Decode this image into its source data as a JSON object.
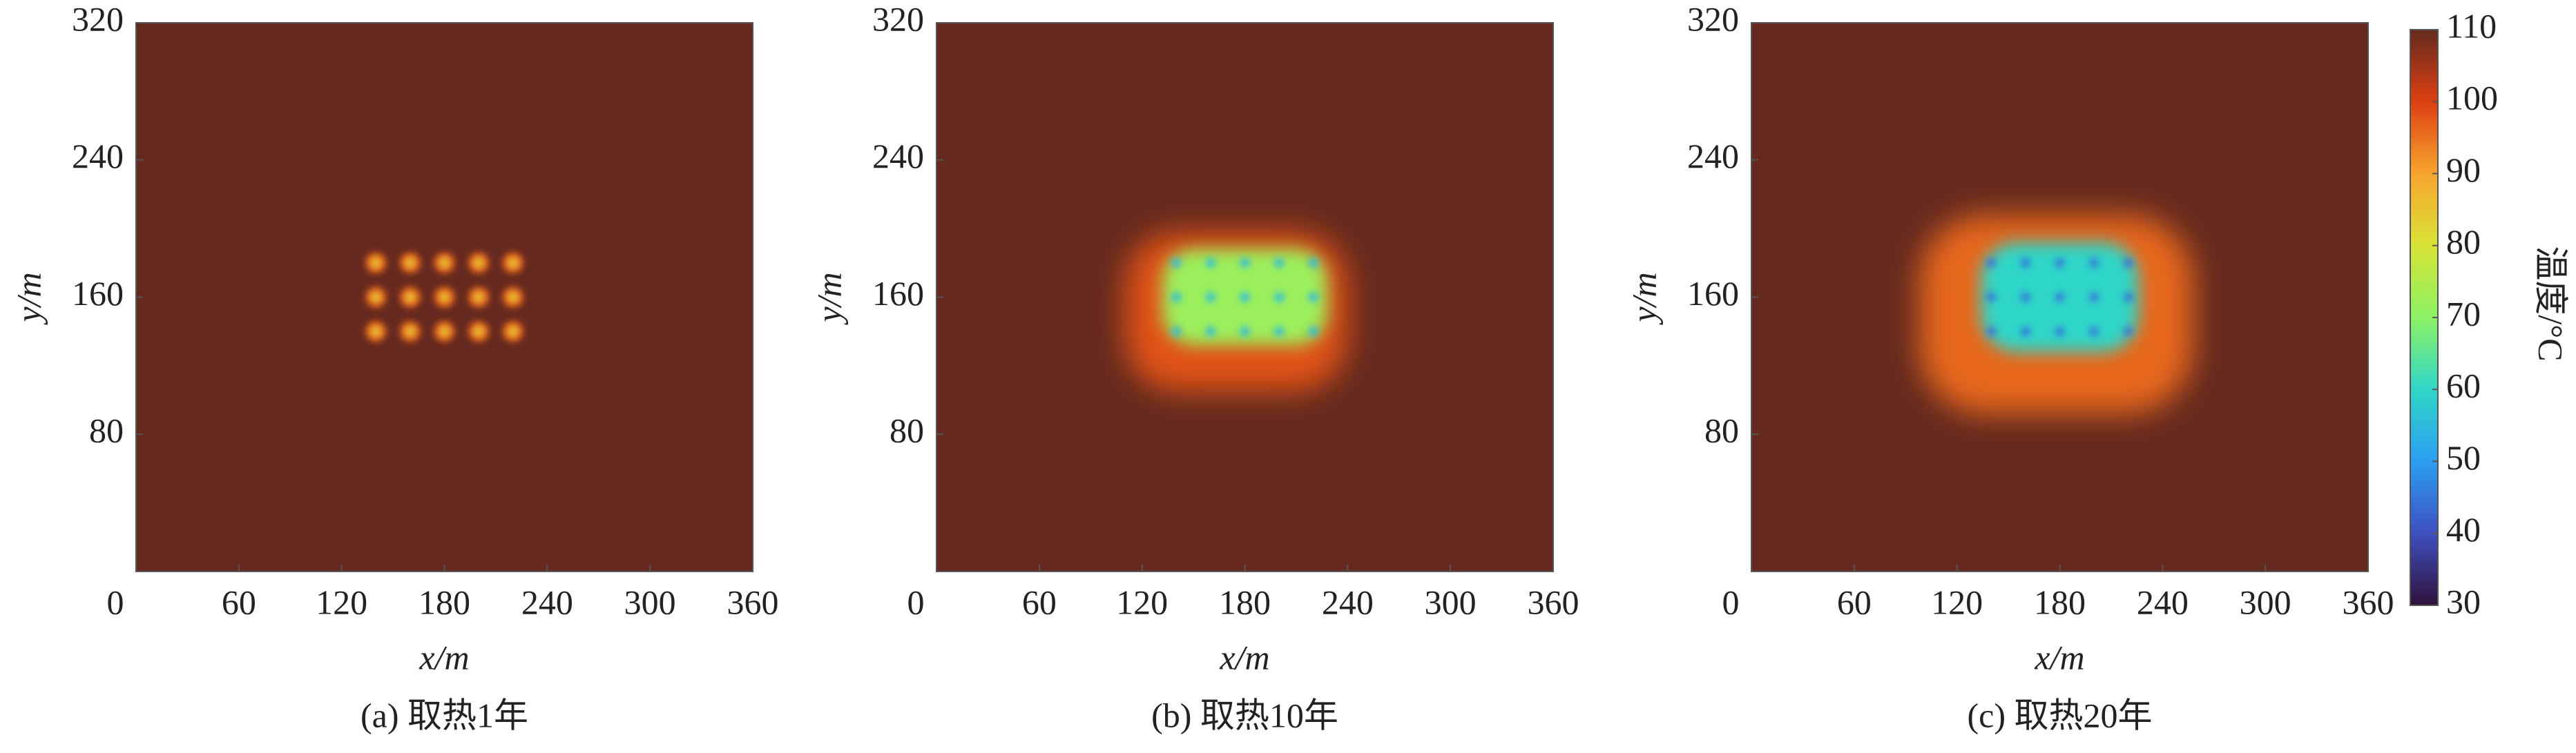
{
  "chart_data": [
    {
      "type": "heatmap",
      "caption": "(a) 取热1年",
      "xlabel": "x/m",
      "ylabel": "y/m",
      "xlim": [
        0,
        360
      ],
      "ylim": [
        0,
        320
      ],
      "xticks": [
        0,
        60,
        120,
        180,
        240,
        300,
        360
      ],
      "yticks": [
        80,
        160,
        240,
        320
      ],
      "background_temperature": 110,
      "wells": {
        "x": [
          140,
          160,
          180,
          200,
          220
        ],
        "y": [
          140,
          160,
          180
        ]
      },
      "well_temperature": 85,
      "halo": null,
      "zone": null
    },
    {
      "type": "heatmap",
      "caption": "(b) 取热10年",
      "xlabel": "x/m",
      "ylabel": "y/m",
      "xlim": [
        0,
        360
      ],
      "ylim": [
        0,
        320
      ],
      "xticks": [
        0,
        60,
        120,
        180,
        240,
        300,
        360
      ],
      "yticks": [
        80,
        160,
        240,
        320
      ],
      "background_temperature": 110,
      "wells": {
        "x": [
          140,
          160,
          180,
          200,
          220
        ],
        "y": [
          140,
          160,
          180
        ]
      },
      "well_temperature": 55,
      "halo": {
        "xlim": [
          110,
          240
        ],
        "ylim": [
          105,
          198
        ],
        "temperature": 98
      },
      "zone": {
        "xlim": [
          132,
          228
        ],
        "ylim": [
          132,
          188
        ],
        "temperature": 72
      }
    },
    {
      "type": "heatmap",
      "caption": "(c) 取热20年",
      "xlabel": "x/m",
      "ylabel": "y/m",
      "xlim": [
        0,
        360
      ],
      "ylim": [
        0,
        320
      ],
      "xticks": [
        0,
        60,
        120,
        180,
        240,
        300,
        360
      ],
      "yticks": [
        80,
        160,
        240,
        320
      ],
      "background_temperature": 110,
      "wells": {
        "x": [
          140,
          160,
          180,
          200,
          220
        ],
        "y": [
          140,
          160,
          180
        ]
      },
      "well_temperature": 45,
      "halo": {
        "xlim": [
          98,
          258
        ],
        "ylim": [
          92,
          208
        ],
        "temperature": 96
      },
      "zone": {
        "xlim": [
          134,
          226
        ],
        "ylim": [
          128,
          192
        ],
        "temperature": 60
      }
    },
    {
      "type": "colorbar",
      "label": "温度/°C",
      "ylim": [
        30,
        110
      ],
      "yticks": [
        30,
        40,
        50,
        60,
        70,
        80,
        90,
        100,
        110
      ],
      "colors": [
        "#30123b",
        "#3e4fc0",
        "#2b9ff2",
        "#2fd6c8",
        "#8cf264",
        "#d8e336",
        "#f8a52e",
        "#dd3f12",
        "#65291f"
      ]
    }
  ]
}
